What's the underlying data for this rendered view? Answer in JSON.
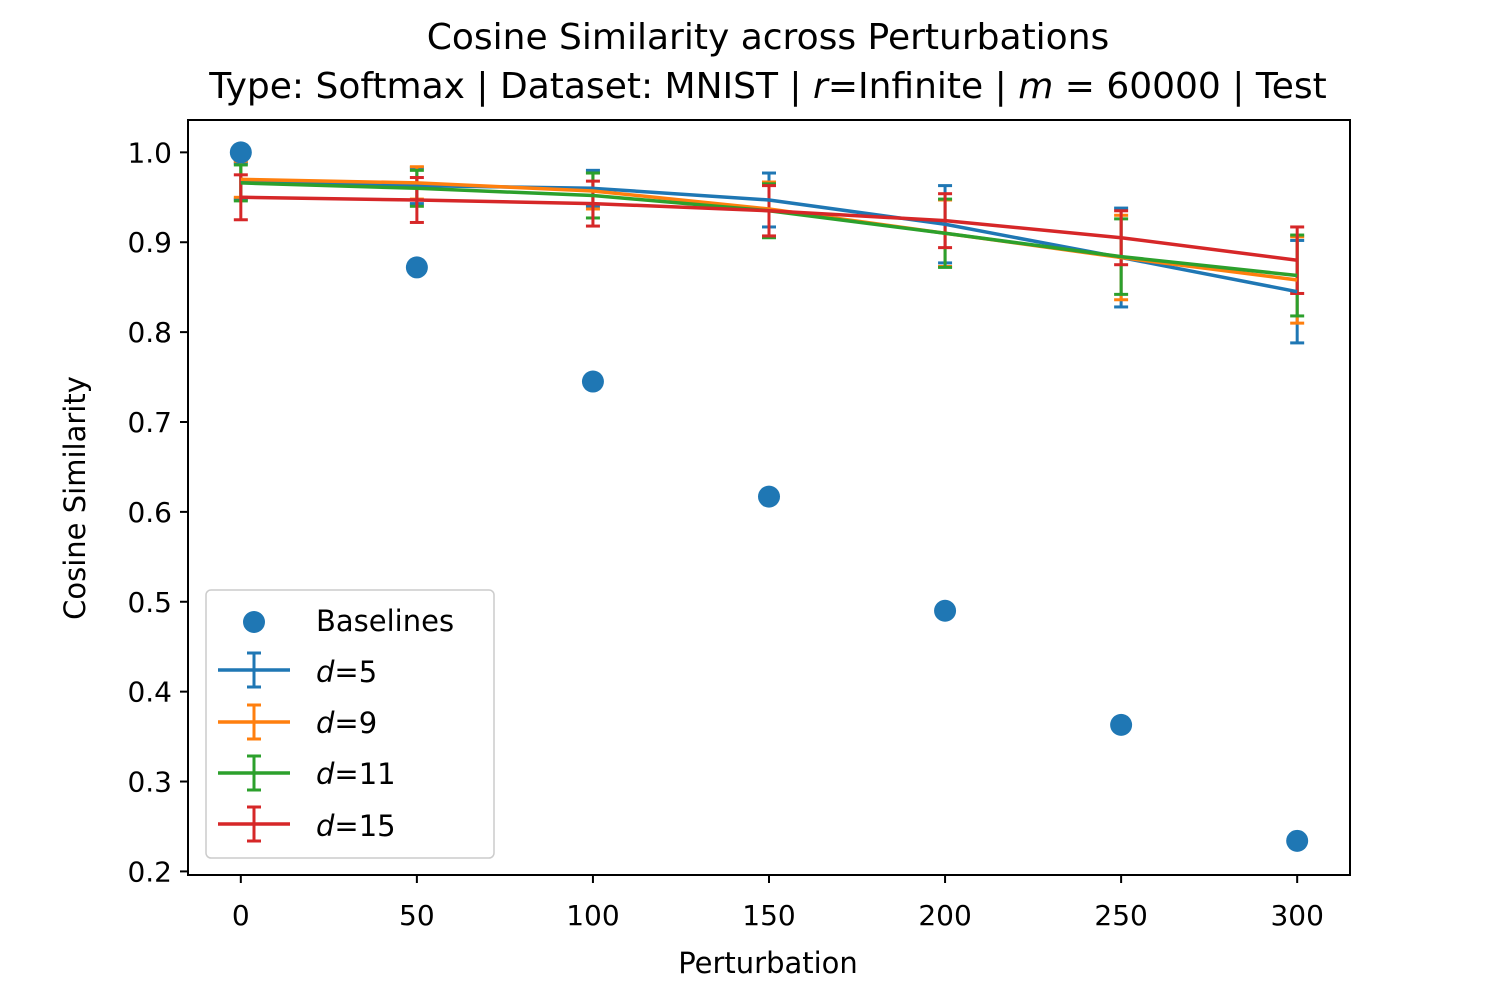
{
  "chart_data": {
    "type": "line",
    "title": "Cosine Similarity across Perturbations",
    "subtitle": {
      "part1": "Type: Softmax | Dataset: MNIST | ",
      "r_symbol": "r",
      "part2": "=Infinite | ",
      "m_symbol": "m",
      "part3": " = 60000 | Test"
    },
    "xlabel": "Perturbation",
    "ylabel": "Cosine Similarity",
    "xlim": [
      -15,
      315
    ],
    "ylim": [
      0.196,
      1.036
    ],
    "x_ticks": [
      0,
      50,
      100,
      150,
      200,
      250,
      300
    ],
    "y_ticks": [
      0.2,
      0.3,
      0.4,
      0.5,
      0.6,
      0.7,
      0.8,
      0.9,
      1.0
    ],
    "x_tick_labels": [
      "0",
      "50",
      "100",
      "150",
      "200",
      "250",
      "300"
    ],
    "y_tick_labels": [
      "0.2",
      "0.3",
      "0.4",
      "0.5",
      "0.6",
      "0.7",
      "0.8",
      "0.9",
      "1.0"
    ],
    "x": [
      0,
      50,
      100,
      150,
      200,
      250,
      300
    ],
    "legend_position": "lower-left",
    "grid": false,
    "baselines": {
      "name": "Baselines",
      "color": "#1f77b4",
      "values": [
        1.0,
        0.872,
        0.745,
        0.617,
        0.49,
        0.363,
        0.234
      ]
    },
    "series": [
      {
        "symbol": "d",
        "suffix": "=5",
        "color": "#1f77b4",
        "values": [
          0.968,
          0.963,
          0.96,
          0.947,
          0.92,
          0.883,
          0.845
        ],
        "errors": [
          0.02,
          0.02,
          0.02,
          0.03,
          0.043,
          0.055,
          0.057
        ]
      },
      {
        "symbol": "d",
        "suffix": "=9",
        "color": "#ff7f0e",
        "values": [
          0.97,
          0.966,
          0.957,
          0.937,
          0.91,
          0.883,
          0.858
        ],
        "errors": [
          0.02,
          0.018,
          0.02,
          0.03,
          0.037,
          0.047,
          0.048
        ]
      },
      {
        "symbol": "d",
        "suffix": "=11",
        "color": "#2ca02c",
        "values": [
          0.966,
          0.96,
          0.952,
          0.935,
          0.91,
          0.884,
          0.863
        ],
        "errors": [
          0.02,
          0.02,
          0.025,
          0.03,
          0.038,
          0.042,
          0.045
        ]
      },
      {
        "symbol": "d",
        "suffix": "=15",
        "color": "#d62728",
        "values": [
          0.95,
          0.947,
          0.943,
          0.935,
          0.924,
          0.905,
          0.88
        ],
        "errors": [
          0.025,
          0.025,
          0.025,
          0.028,
          0.03,
          0.03,
          0.037
        ]
      }
    ]
  }
}
